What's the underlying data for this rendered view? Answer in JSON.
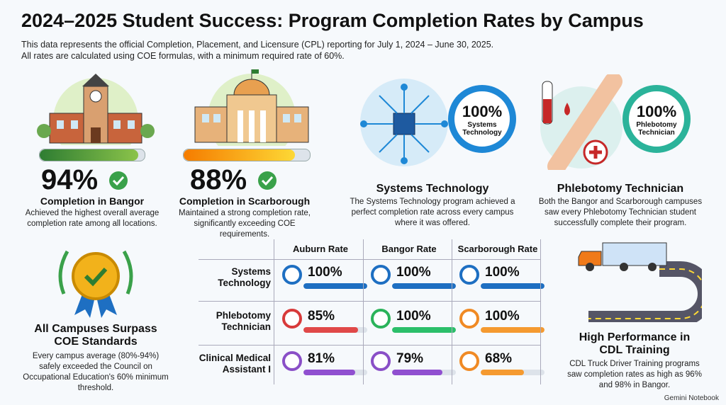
{
  "header": {
    "title": "2024–2025 Student Success: Program Completion Rates by Campus",
    "subtitle": [
      "This data represents the official Completion, Placement, and Licensure (CPL) reporting for July 1, 2024 – June 30, 2025.",
      "All rates are calculated using COE formulas, with a minimum required rate of 60%."
    ]
  },
  "highlights": [
    {
      "value": "94%",
      "label": "Completion in Bangor",
      "text": "Achieved the highest overall average completion rate among all locations."
    },
    {
      "value": "88%",
      "label": "Completion in Scarborough",
      "text": "Maintained a strong completion rate, significantly exceeding COE requirements."
    }
  ],
  "programs": [
    {
      "value": "100%",
      "badge": "Systems Technology",
      "title": "Systems Technology",
      "text": "The Systems Technology program achieved a perfect completion rate across every campus where it was offered."
    },
    {
      "value": "100%",
      "badge": "Phlebotomy Technician",
      "title": "Phlebotomy Technician",
      "text": "Both the Bangor and Scarborough campuses saw every Phlebotomy Technician student successfully complete their program."
    }
  ],
  "standards": {
    "title": "All Campuses Surpass COE Standards",
    "text": "Every campus average (80%-94%) safely exceeded the Council on Occupational Education's 60% minimum threshold."
  },
  "table": {
    "columns": [
      "Auburn Rate",
      "Bangor Rate",
      "Scarborough Rate"
    ],
    "rows": [
      {
        "label": "Systems Technology",
        "values": [
          "100%",
          "100%",
          "100%"
        ]
      },
      {
        "label": "Phlebotomy Technician",
        "values": [
          "85%",
          "100%",
          "100%"
        ]
      },
      {
        "label": "Clinical Medical Assistant I",
        "values": [
          "81%",
          "79%",
          "68%"
        ]
      }
    ]
  },
  "cdl": {
    "title": "High Performance in CDL Training",
    "text": "CDL Truck Driver Training programs saw completion rates as high as 96% and 98% in Bangor."
  },
  "footer": "Gemini Notebook"
}
